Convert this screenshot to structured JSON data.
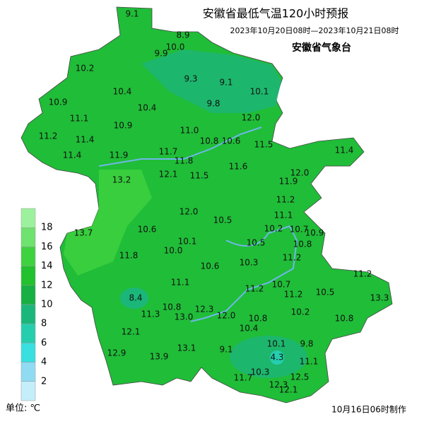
{
  "header": {
    "title": "安徽省最低气温120小时预报",
    "period": "2023年10月20日08时—2023年10月21日08时",
    "agency": "安徽省气象台"
  },
  "legend": {
    "unit": "单位: ℃",
    "labels": [
      "18",
      "16",
      "14",
      "12",
      "10",
      "8",
      "6",
      "4",
      "2"
    ],
    "colors": [
      "#9cf29c",
      "#6ee36e",
      "#3fd23f",
      "#22c12e",
      "#17b043",
      "#1bb77a",
      "#25cfae",
      "#38e0e0",
      "#8fdcf2",
      "#c4eefa"
    ]
  },
  "stations": [
    "9.1",
    "8.9",
    "10.0",
    "9.9",
    "10.2",
    "9.3",
    "9.1",
    "10.4",
    "10.1",
    "10.9",
    "9.8",
    "10.4",
    "12.0",
    "11.1",
    "10.9",
    "11.0",
    "11.2",
    "11.4",
    "10.8",
    "10.6",
    "11.5",
    "11.4",
    "11.4",
    "11.9",
    "11.7",
    "11.8",
    "11.6",
    "12.0",
    "13.2",
    "12.1",
    "11.5",
    "11.9",
    "11.2",
    "12.0",
    "13.7",
    "10.6",
    "10.5",
    "11.1",
    "10.2",
    "10.7",
    "10.9",
    "10.1",
    "10.0",
    "10.5",
    "10.8",
    "11.8",
    "10.3",
    "11.2",
    "10.6",
    "11.1",
    "10.7",
    "11.2",
    "11.2",
    "8.4",
    "11.2",
    "10.5",
    "13.3",
    "10.8",
    "12.3",
    "11.3",
    "13.0",
    "12.0",
    "10.8",
    "10.2",
    "10.8",
    "10.4",
    "12.1",
    "9.1",
    "10.1",
    "9.8",
    "4.3",
    "13.1",
    "12.9",
    "13.9",
    "11.1",
    "10.3",
    "12.5",
    "11.7",
    "12.3",
    "12.1"
  ],
  "footer": "10月16日06时制作"
}
